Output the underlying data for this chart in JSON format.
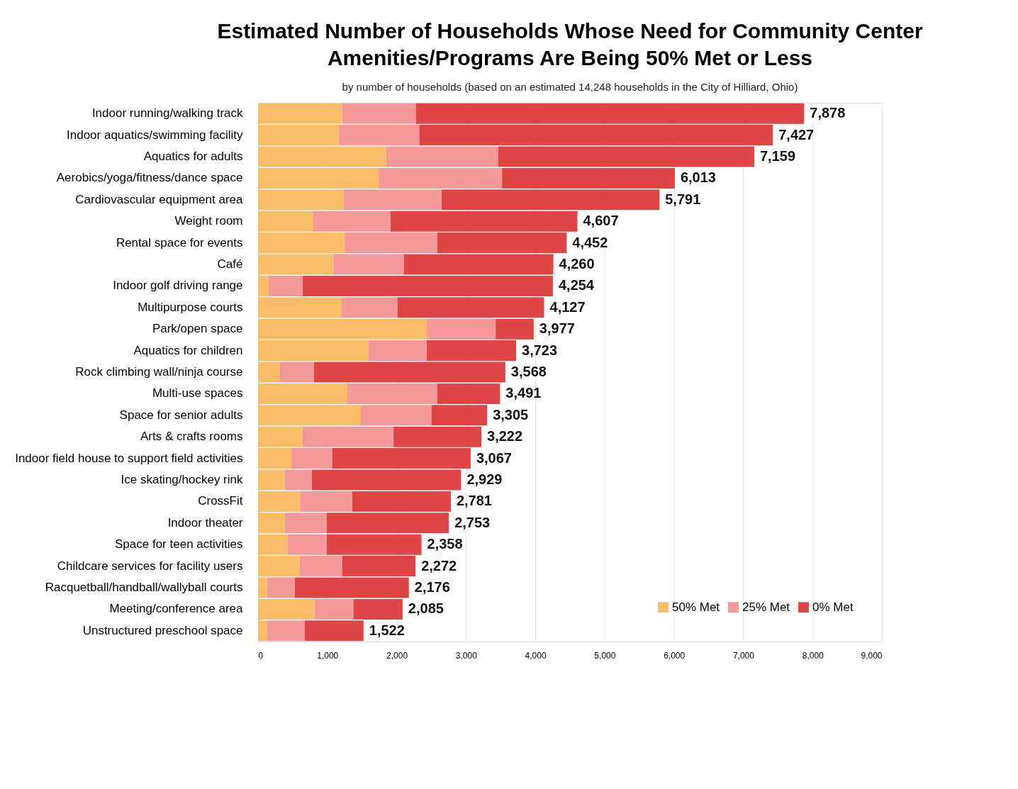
{
  "chart_data": {
    "type": "bar",
    "orientation": "horizontal",
    "stacked": true,
    "title": "Estimated Number of Households Whose Need for Community Center Amenities/Programs Are Being 50% Met or Less",
    "subtitle": "by number of households (based on an estimated 14,248 households in the City of Hilliard, Ohio)",
    "categories": [
      "Indoor running/walking track",
      "Indoor aquatics/swimming facility",
      "Aquatics for adults",
      "Aerobics/yoga/fitness/dance space",
      "Cardiovascular equipment area",
      "Weight room",
      "Rental space for events",
      "Café",
      "Indoor golf driving range",
      "Multipurpose courts",
      "Park/open space",
      "Aquatics for children",
      "Rock climbing wall/ninja course",
      "Multi-use spaces",
      "Space for senior adults",
      "Arts & crafts rooms",
      "Indoor field house to support field activities",
      "Ice skating/hockey rink",
      "CrossFit",
      "Indoor theater",
      "Space for teen activities",
      "Childcare services for facility users",
      "Racquetball/handball/wallyball courts",
      "Meeting/conference area",
      "Unstructured preschool space"
    ],
    "series": [
      {
        "name": "50% Met",
        "color": "#fbbd68",
        "values": [
          1213,
          1160,
          1851,
          1740,
          1234,
          789,
          1243,
          1089,
          154,
          1206,
          2434,
          1590,
          316,
          1289,
          1483,
          638,
          482,
          384,
          605,
          384,
          424,
          599,
          129,
          813,
          132
        ]
      },
      {
        "name": "25% Met",
        "color": "#f4999a",
        "values": [
          1064,
          1167,
          1611,
          1780,
          1415,
          1123,
          1341,
          1013,
          491,
          805,
          994,
          844,
          492,
          1295,
          1018,
          1317,
          586,
          392,
          755,
          604,
          567,
          614,
          402,
          562,
          543
        ]
      },
      {
        "name": "0% Met",
        "color": "#e04545",
        "values": [
          5601,
          5100,
          3697,
          2493,
          3142,
          2695,
          1868,
          2158,
          3609,
          2116,
          549,
          1289,
          2760,
          907,
          804,
          1267,
          1999,
          2153,
          1421,
          1765,
          1367,
          1059,
          1645,
          710,
          847
        ]
      }
    ],
    "totals": [
      "7,878",
      "7,427",
      "7,159",
      "6,013",
      "5,791",
      "4,607",
      "4,452",
      "4,260",
      "4,254",
      "4,127",
      "3,977",
      "3,723",
      "3,568",
      "3,491",
      "3,305",
      "3,222",
      "3,067",
      "2,929",
      "2,781",
      "2,753",
      "2,358",
      "2,272",
      "2,176",
      "2,085",
      "1,522"
    ],
    "xlim": [
      0,
      9000
    ],
    "xticks": [
      0,
      {
        "value": 1000,
        "label": "1,000"
      },
      {
        "value": 2000,
        "label": "2,000"
      },
      {
        "value": 3000,
        "label": "3,000"
      },
      {
        "value": 4000,
        "label": "4,000"
      },
      {
        "value": 5000,
        "label": "5,000"
      },
      {
        "value": 6000,
        "label": "6,000"
      },
      {
        "value": 7000,
        "label": "7,000"
      },
      {
        "value": 8000,
        "label": "8,000"
      },
      {
        "value": 9000,
        "label": "9,000"
      }
    ],
    "grid": "x",
    "legend": "bottom right"
  }
}
